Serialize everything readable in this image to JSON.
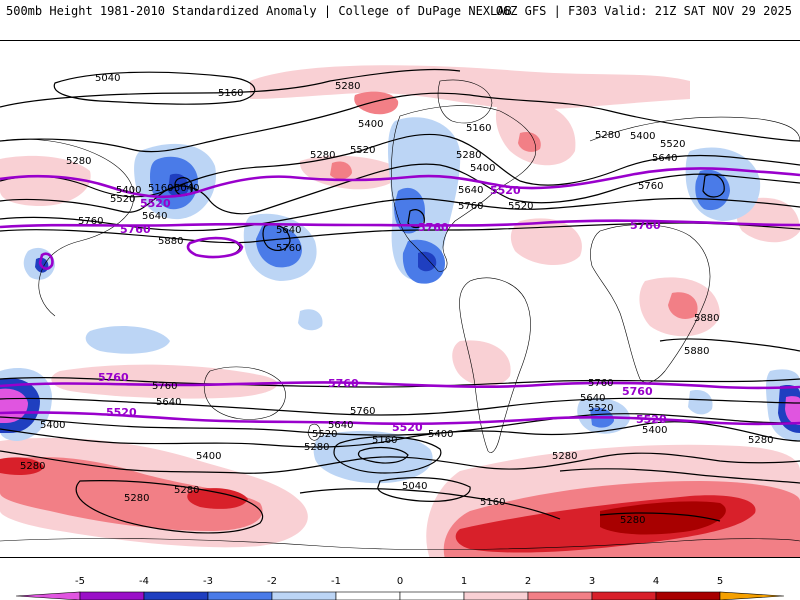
{
  "header": {
    "left_title": "500mb Height 1981-2010 Standardized Anomaly | College of DuPage NEXLAB",
    "right_title": "06Z GFS | F303 Valid: 21Z SAT NOV 29 2025"
  },
  "colors": {
    "neg5": "#e055e0",
    "neg4": "#9a10c8",
    "neg3": "#1f3fc0",
    "neg2": "#4a7be8",
    "neg1": "#bcd5f5",
    "zero": "#ffffff",
    "pos1": "#f9d0d4",
    "pos2": "#f27f86",
    "pos3": "#d8202a",
    "pos4": "#a80000",
    "pos5": "#f5a000",
    "contour": "#000000",
    "highlight_contour": "#9900cc",
    "coastline": "#000000"
  },
  "contour_labels": {
    "black": [
      "5040",
      "5160",
      "5280",
      "5400",
      "5520",
      "5640",
      "5760",
      "5880"
    ],
    "purple": [
      "5520",
      "5760"
    ]
  },
  "colorbar": {
    "ticks": [
      "-5",
      "-4",
      "-3",
      "-2",
      "-1",
      "0",
      "1",
      "2",
      "3",
      "4",
      "5"
    ]
  }
}
